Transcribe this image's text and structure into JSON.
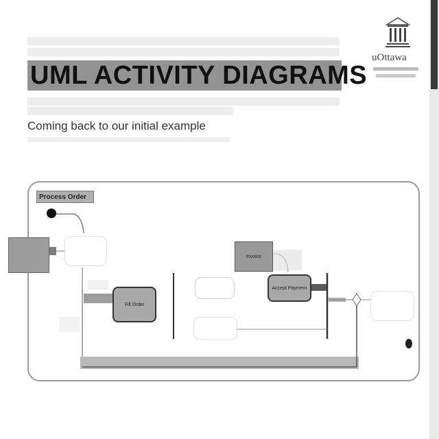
{
  "slide": {
    "title": "UML ACTIVITY DIAGRAMS",
    "subtitle": "Coming back to our initial example"
  },
  "logo": {
    "name": "uOttawa"
  },
  "diagram": {
    "frame_label": "Process Order",
    "nodes": {
      "fill_order": "Fill Order",
      "invoice": "Invoice",
      "accept_payment": "Accept Payment"
    }
  },
  "colors": {
    "highlight": "#8d8d8d",
    "dark_node": "#a9a9a9",
    "frame": "#9a9a9a"
  }
}
